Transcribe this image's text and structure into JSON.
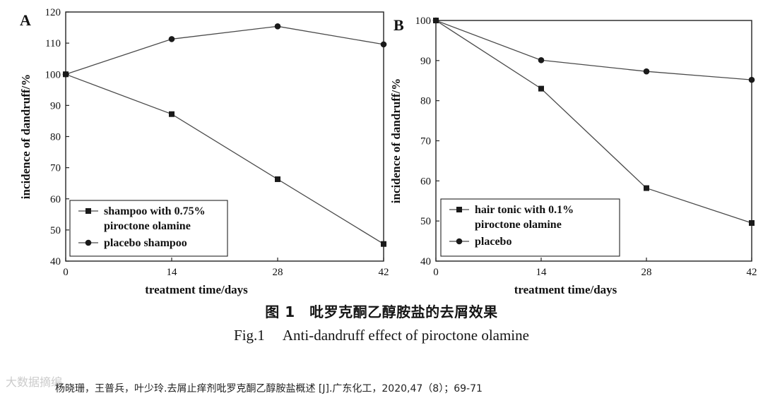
{
  "chart_data": [
    {
      "panel": "A",
      "type": "line",
      "xlabel": "treatment time/days",
      "ylabel": "incidence of dandruff/%",
      "xticks": [
        0,
        14,
        28,
        42
      ],
      "yticks": [
        40,
        50,
        60,
        70,
        80,
        90,
        100,
        110,
        120
      ],
      "xlim": [
        0,
        42
      ],
      "ylim": [
        40,
        120
      ],
      "legend_position": "bottom-left",
      "grid": false,
      "series": [
        {
          "name_lines": [
            "shampoo with 0.75%",
            "piroctone olamine"
          ],
          "marker": "square",
          "x": [
            0,
            14,
            28,
            42
          ],
          "y": [
            100,
            87.2,
            66.3,
            45.5
          ]
        },
        {
          "name_lines": [
            "placebo shampoo"
          ],
          "marker": "circle",
          "x": [
            0,
            14,
            28,
            42
          ],
          "y": [
            100,
            111.3,
            115.4,
            109.6
          ]
        }
      ]
    },
    {
      "panel": "B",
      "type": "line",
      "xlabel": "treatment time/days",
      "ylabel": "incidence of dandruff/%",
      "xticks": [
        0,
        14,
        28,
        42
      ],
      "yticks": [
        40,
        50,
        60,
        70,
        80,
        90,
        100
      ],
      "xlim": [
        0,
        42
      ],
      "ylim": [
        40,
        100
      ],
      "legend_position": "bottom-left",
      "grid": false,
      "series": [
        {
          "name_lines": [
            "hair tonic with 0.1%",
            "piroctone olamine"
          ],
          "marker": "square",
          "x": [
            0,
            14,
            28,
            42
          ],
          "y": [
            100,
            83,
            58.2,
            49.5
          ]
        },
        {
          "name_lines": [
            "placebo"
          ],
          "marker": "circle",
          "x": [
            0,
            14,
            28,
            42
          ],
          "y": [
            100,
            90.1,
            87.3,
            85.2
          ]
        }
      ]
    }
  ],
  "caption": {
    "cn": "图 1　吡罗克酮乙醇胺盐的去屑效果",
    "en": "Fig.1　 Anti-dandruff effect of piroctone olamine"
  },
  "citation": "杨晓珊，王普兵，叶少玲.去屑止痒剂吡罗克酮乙醇胺盐概述 [J].广东化工，2020,47（8）；69-71",
  "watermark": "大数据摘编",
  "colors": {
    "line": "#4a4a4a",
    "marker": "#1a1a1a",
    "axis": "#222222",
    "text": "#111111"
  }
}
